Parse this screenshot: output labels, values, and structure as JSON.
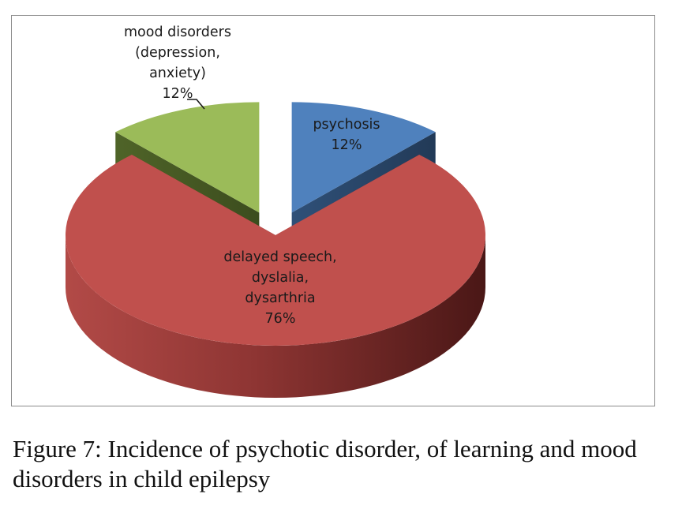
{
  "figure": {
    "caption": "Figure 7: Incidence of psychotic disorder, of learning and mood disorders in child epilepsy"
  },
  "chart_data": {
    "type": "pie",
    "title": "",
    "slices": [
      {
        "label_lines": [
          "psychosis",
          "12%"
        ],
        "value": 12,
        "color": "#4f81bd",
        "exploded": true
      },
      {
        "label_lines": [
          "delayed speech,",
          "dyslalia,",
          "dysarthria",
          "76%"
        ],
        "value": 76,
        "color": "#c0504d",
        "exploded": false
      },
      {
        "label_lines": [
          "mood disorders",
          "(depression,",
          "anxiety)",
          "12%"
        ],
        "value": 12,
        "color": "#9bbb59",
        "exploded": true
      }
    ],
    "legend": "none",
    "style": "3d-pie-exploded"
  }
}
